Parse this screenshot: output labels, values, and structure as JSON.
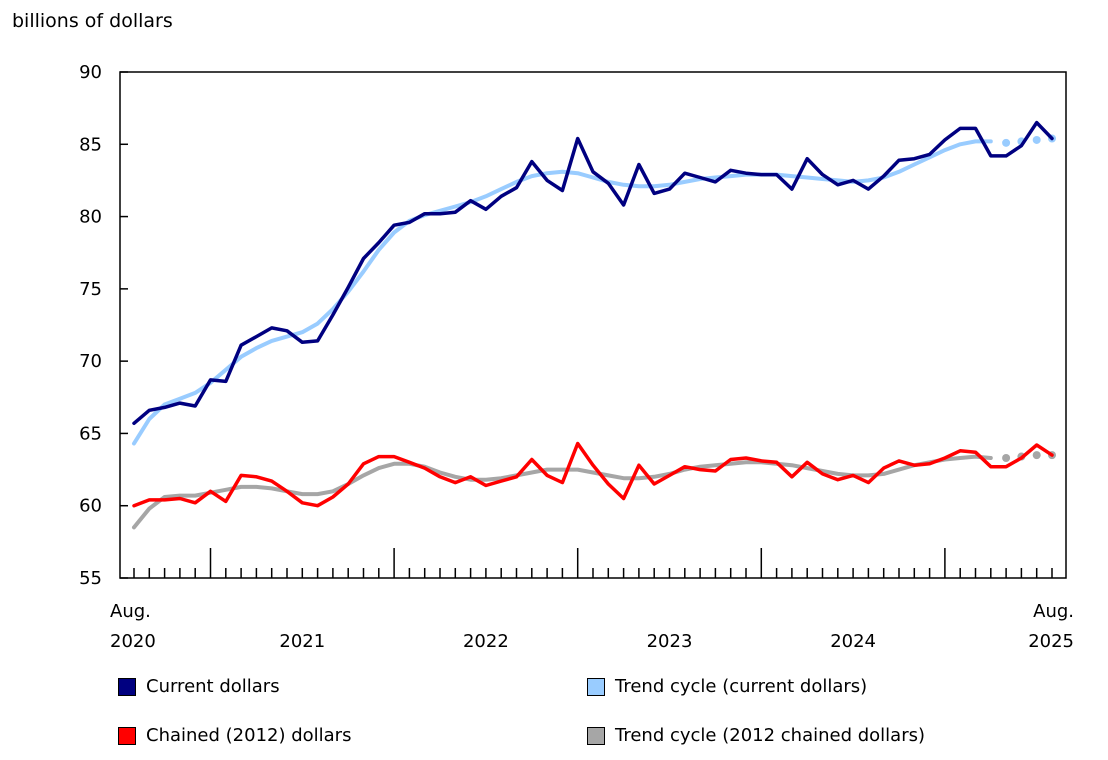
{
  "chart_data": {
    "type": "line",
    "ylabel": "billions of dollars",
    "ylim": [
      55,
      90
    ],
    "yticks": [
      55,
      60,
      65,
      70,
      75,
      80,
      85,
      90
    ],
    "x_start": "2020-08",
    "x_end": "2025-08",
    "x_tick_labels": [
      {
        "line1": "Aug.",
        "line2": "2020"
      },
      {
        "line1": "",
        "line2": "2021"
      },
      {
        "line1": "",
        "line2": "2022"
      },
      {
        "line1": "",
        "line2": "2023"
      },
      {
        "line1": "",
        "line2": "2024"
      },
      {
        "line1": "Aug.",
        "line2": "2025"
      }
    ],
    "legend_placement": "bottom",
    "series": [
      {
        "name": "Current dollars",
        "color": "#000080",
        "style": "line",
        "values": [
          65.7,
          66.6,
          66.8,
          67.1,
          66.9,
          68.7,
          68.6,
          71.1,
          71.7,
          72.3,
          72.1,
          71.3,
          71.4,
          73.2,
          75.1,
          77.1,
          78.2,
          79.4,
          79.6,
          80.2,
          80.2,
          80.3,
          81.1,
          80.5,
          81.4,
          82.0,
          83.8,
          82.5,
          81.8,
          85.4,
          83.1,
          82.3,
          80.8,
          83.6,
          81.6,
          81.9,
          83.0,
          82.7,
          82.4,
          83.2,
          83.0,
          82.9,
          82.9,
          81.9,
          84.0,
          82.9,
          82.2,
          82.5,
          81.9,
          82.8,
          83.9,
          84.0,
          84.3,
          85.3,
          86.1,
          86.1,
          84.2,
          84.2,
          84.9,
          86.5,
          85.4
        ]
      },
      {
        "name": "Trend cycle (current dollars)",
        "color": "#99CCFF",
        "style": "smooth",
        "values": [
          64.3,
          66.0,
          67.0,
          67.4,
          67.8,
          68.5,
          69.4,
          70.3,
          70.9,
          71.4,
          71.7,
          72.0,
          72.6,
          73.6,
          74.8,
          76.2,
          77.7,
          78.9,
          79.7,
          80.1,
          80.4,
          80.7,
          81.0,
          81.4,
          81.9,
          82.4,
          82.8,
          83.0,
          83.1,
          83.0,
          82.7,
          82.4,
          82.2,
          82.1,
          82.1,
          82.2,
          82.4,
          82.6,
          82.7,
          82.8,
          82.9,
          82.9,
          82.9,
          82.8,
          82.7,
          82.6,
          82.5,
          82.4,
          82.5,
          82.7,
          83.1,
          83.6,
          84.1,
          84.6,
          85.0,
          85.2,
          85.2
        ],
        "dotted_values": [
          85.1,
          85.2,
          85.3,
          85.4
        ]
      },
      {
        "name": "Chained (2012) dollars",
        "color": "#FF0000",
        "style": "line",
        "values": [
          60.0,
          60.4,
          60.4,
          60.5,
          60.2,
          61.0,
          60.3,
          62.1,
          62.0,
          61.7,
          61.0,
          60.2,
          60.0,
          60.6,
          61.5,
          62.9,
          63.4,
          63.4,
          63.0,
          62.6,
          62.0,
          61.6,
          62.0,
          61.4,
          61.7,
          62.0,
          63.2,
          62.1,
          61.6,
          64.3,
          62.8,
          61.5,
          60.5,
          62.8,
          61.5,
          62.1,
          62.7,
          62.5,
          62.4,
          63.2,
          63.3,
          63.1,
          63.0,
          62.0,
          63.0,
          62.2,
          61.8,
          62.1,
          61.6,
          62.6,
          63.1,
          62.8,
          62.9,
          63.3,
          63.8,
          63.7,
          62.7,
          62.7,
          63.3,
          64.2,
          63.5
        ]
      },
      {
        "name": "Trend cycle (2012 chained dollars)",
        "color": "#A6A6A6",
        "style": "smooth",
        "values": [
          58.5,
          59.8,
          60.6,
          60.7,
          60.7,
          60.9,
          61.1,
          61.3,
          61.3,
          61.2,
          61.0,
          60.8,
          60.8,
          61.0,
          61.5,
          62.1,
          62.6,
          62.9,
          62.9,
          62.7,
          62.3,
          62.0,
          61.8,
          61.8,
          61.9,
          62.1,
          62.3,
          62.5,
          62.5,
          62.5,
          62.3,
          62.1,
          61.9,
          61.9,
          62.0,
          62.2,
          62.5,
          62.7,
          62.8,
          62.9,
          63.0,
          63.0,
          62.9,
          62.8,
          62.6,
          62.4,
          62.2,
          62.1,
          62.1,
          62.2,
          62.5,
          62.8,
          63.0,
          63.2,
          63.3,
          63.4,
          63.3
        ],
        "dotted_values": [
          63.3,
          63.4,
          63.5,
          63.5
        ]
      }
    ]
  }
}
